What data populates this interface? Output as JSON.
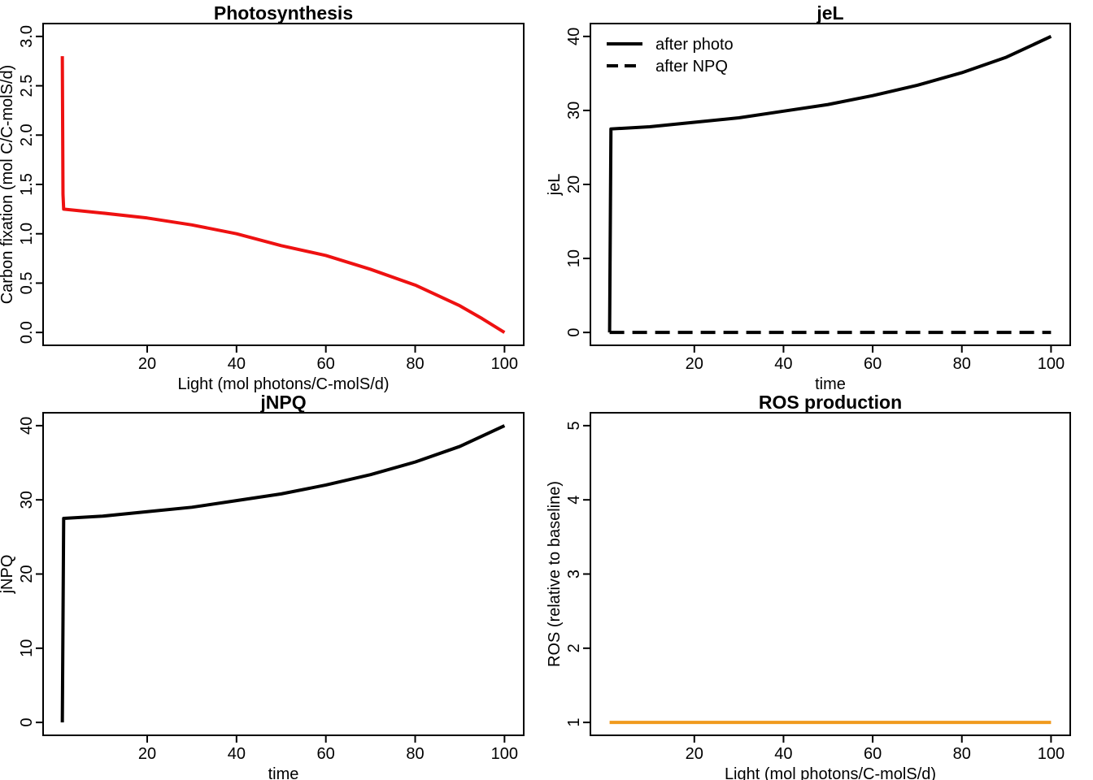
{
  "chart_data": [
    {
      "type": "line",
      "title": "Photosynthesis",
      "xlabel": "Light (mol photons/C-molS/d)",
      "ylabel": "Carbon fixation (mol C/C-molS/d)",
      "xlim": [
        1,
        100
      ],
      "ylim": [
        0,
        3
      ],
      "xticks": [
        "20",
        "40",
        "60",
        "80",
        "100"
      ],
      "yticks": [
        "0.0",
        "0.5",
        "1.0",
        "1.5",
        "2.0",
        "2.5",
        "3.0"
      ],
      "grid": false,
      "series": [
        {
          "color": "#ee1111",
          "dash": "solid",
          "x": [
            1.0,
            1.15,
            1.3,
            10,
            20,
            30,
            40,
            50,
            60,
            70,
            80,
            90,
            95,
            100
          ],
          "y": [
            2.8,
            1.4,
            1.25,
            1.21,
            1.16,
            1.09,
            1.0,
            0.88,
            0.78,
            0.64,
            0.48,
            0.27,
            0.14,
            0.0
          ]
        }
      ]
    },
    {
      "type": "line",
      "title": "jeL",
      "xlabel": "time",
      "ylabel": "jeL",
      "xlim": [
        1,
        100
      ],
      "ylim": [
        0,
        40
      ],
      "xticks": [
        "20",
        "40",
        "60",
        "80",
        "100"
      ],
      "yticks": [
        "0",
        "10",
        "20",
        "30",
        "40"
      ],
      "grid": false,
      "legend": {
        "position": "top-left",
        "entries": [
          "after photo",
          "after NPQ"
        ]
      },
      "series": [
        {
          "name": "after photo",
          "color": "#000000",
          "dash": "solid",
          "x": [
            1.0,
            1.3,
            10,
            20,
            30,
            40,
            50,
            60,
            70,
            80,
            90,
            100
          ],
          "y": [
            0.0,
            27.5,
            27.8,
            28.4,
            29.0,
            29.9,
            30.8,
            32.0,
            33.4,
            35.1,
            37.2,
            40.0
          ]
        },
        {
          "name": "after NPQ",
          "color": "#000000",
          "dash": "dashed",
          "x": [
            1,
            100
          ],
          "y": [
            0,
            0
          ]
        }
      ]
    },
    {
      "type": "line",
      "title": "jNPQ",
      "xlabel": "time",
      "ylabel": "jNPQ",
      "xlim": [
        1,
        100
      ],
      "ylim": [
        0,
        40
      ],
      "xticks": [
        "20",
        "40",
        "60",
        "80",
        "100"
      ],
      "yticks": [
        "0",
        "10",
        "20",
        "30",
        "40"
      ],
      "grid": false,
      "series": [
        {
          "color": "#000000",
          "dash": "solid",
          "x": [
            1.0,
            1.3,
            10,
            20,
            30,
            40,
            50,
            60,
            70,
            80,
            90,
            100
          ],
          "y": [
            0.0,
            27.5,
            27.8,
            28.4,
            29.0,
            29.9,
            30.8,
            32.0,
            33.4,
            35.1,
            37.2,
            40.0
          ]
        }
      ]
    },
    {
      "type": "line",
      "title": "ROS production",
      "xlabel": "Light (mol photons/C-molS/d)",
      "ylabel": "ROS (relative to baseline)",
      "xlim": [
        1,
        100
      ],
      "ylim": [
        1,
        5
      ],
      "xticks": [
        "20",
        "40",
        "60",
        "80",
        "100"
      ],
      "yticks": [
        "1",
        "2",
        "3",
        "4",
        "5"
      ],
      "grid": false,
      "series": [
        {
          "color": "#f09a1e",
          "dash": "solid",
          "x": [
            1,
            100
          ],
          "y": [
            1,
            1
          ]
        }
      ]
    }
  ]
}
